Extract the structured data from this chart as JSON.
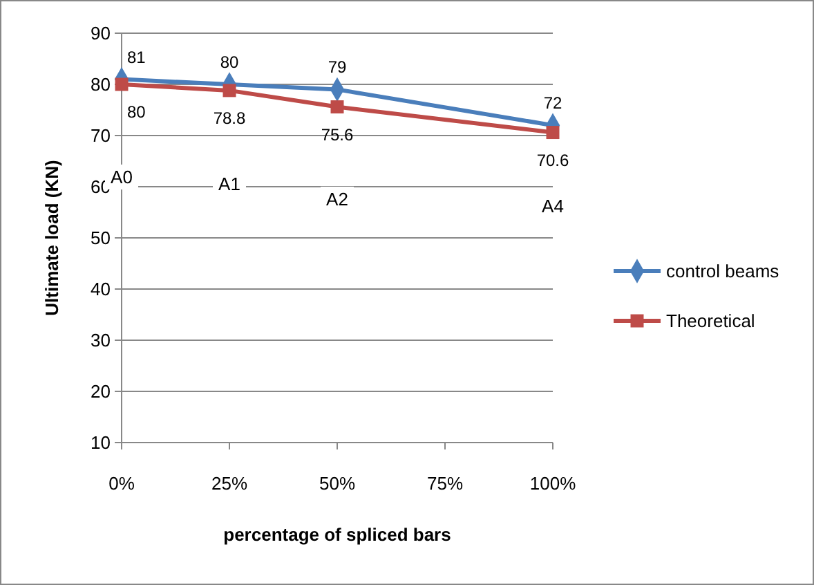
{
  "chart_data": {
    "type": "line",
    "xlabel": "percentage of spliced bars",
    "ylabel": "Ultimate load (KN)",
    "x": [
      0,
      25,
      50,
      100
    ],
    "series": [
      {
        "name": "control beams",
        "color": "#4a7ebb",
        "values": [
          81,
          80,
          79,
          72
        ],
        "marker": "diamond"
      },
      {
        "name": "Theoretical",
        "color": "#be4b48",
        "values": [
          80,
          78.8,
          75.6,
          70.6
        ],
        "marker": "square"
      }
    ],
    "xlim": [
      0,
      100
    ],
    "xticks": [
      {
        "value": 0,
        "label": "0%"
      },
      {
        "value": 25,
        "label": "25%"
      },
      {
        "value": 50,
        "label": "50%"
      },
      {
        "value": 75,
        "label": "75%"
      },
      {
        "value": 100,
        "label": "100%"
      }
    ],
    "ylim": [
      10,
      90
    ],
    "yticks": [
      10,
      20,
      30,
      40,
      50,
      60,
      70,
      80,
      90
    ],
    "grid": "y",
    "legend": "right",
    "data_labels": true,
    "annotations": [
      "A0",
      "A1",
      "A2",
      "A4"
    ]
  }
}
